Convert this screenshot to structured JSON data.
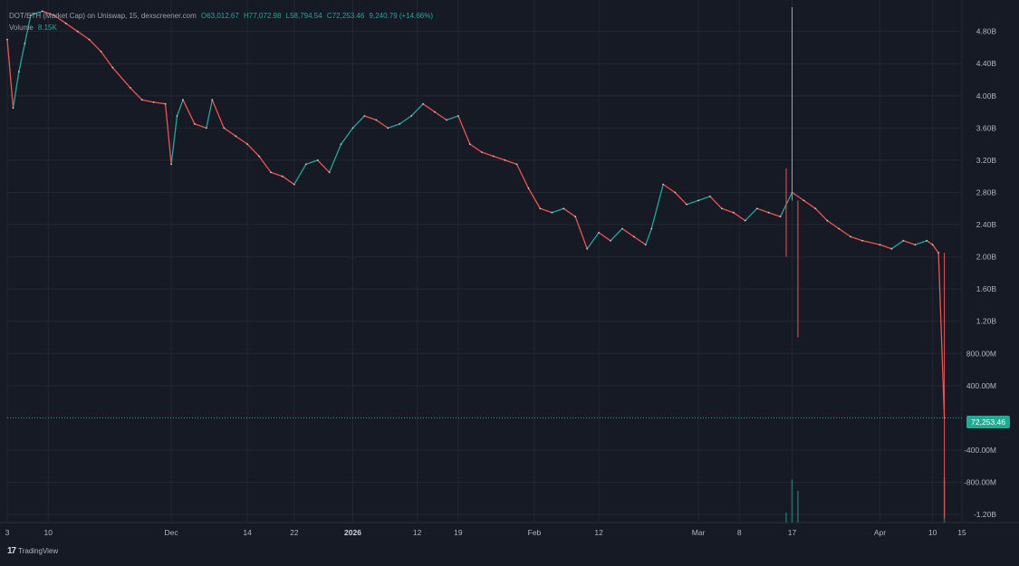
{
  "legend": {
    "symbol": "DOT/ETH (Market Cap) on Uniswap, 15, dexscreener.com",
    "open": "O63,012.67",
    "high": "H77,072.98",
    "low": "L58,794.54",
    "close": "C72,253.46",
    "change": "9,240.79 (+14.66%)",
    "volume_label": "Volume",
    "volume_value": "8.15K"
  },
  "last_price_label": "72,253.46",
  "footer": {
    "brand": "TradingView",
    "icon": "tradingview-logo-icon"
  },
  "colors": {
    "background": "#161a25",
    "up": "#26a69a",
    "down": "#ef5350",
    "grid": "#232733",
    "price_tag": "#22ab94"
  },
  "chart_data": {
    "type": "line",
    "title": "",
    "xlabel": "",
    "ylabel": "",
    "y_unit": "Market Cap",
    "ylim": [
      -1300000000,
      5100000000
    ],
    "x_range": [
      "2025-11-03",
      "2026-04-15"
    ],
    "y_ticks": [
      {
        "v": 4800000000,
        "label": "4.80B"
      },
      {
        "v": 4400000000,
        "label": "4.40B"
      },
      {
        "v": 4000000000,
        "label": "4.00B"
      },
      {
        "v": 3600000000,
        "label": "3.60B"
      },
      {
        "v": 3200000000,
        "label": "3.20B"
      },
      {
        "v": 2800000000,
        "label": "2.80B"
      },
      {
        "v": 2400000000,
        "label": "2.40B"
      },
      {
        "v": 2000000000,
        "label": "2.00B"
      },
      {
        "v": 1600000000,
        "label": "1.60B"
      },
      {
        "v": 1200000000,
        "label": "1.20B"
      },
      {
        "v": 800000000,
        "label": "800.00M"
      },
      {
        "v": 400000000,
        "label": "400.00M"
      },
      {
        "v": -400000000,
        "label": "-400.00M"
      },
      {
        "v": -800000000,
        "label": "-800.00M"
      },
      {
        "v": -1200000000,
        "label": "-1.20B"
      }
    ],
    "x_ticks": [
      {
        "date": "2025-11-03",
        "label": "3"
      },
      {
        "date": "2025-11-10",
        "label": "10"
      },
      {
        "date": "2025-12-01",
        "label": "Dec"
      },
      {
        "date": "2025-12-14",
        "label": "14"
      },
      {
        "date": "2025-12-22",
        "label": "22"
      },
      {
        "date": "2026-01-01",
        "label": "2026"
      },
      {
        "date": "2026-01-12",
        "label": "12"
      },
      {
        "date": "2026-01-19",
        "label": "19"
      },
      {
        "date": "2026-02-01",
        "label": "Feb"
      },
      {
        "date": "2026-02-12",
        "label": "12"
      },
      {
        "date": "2026-03-01",
        "label": "Mar"
      },
      {
        "date": "2026-03-08",
        "label": "8"
      },
      {
        "date": "2026-03-17",
        "label": "17"
      },
      {
        "date": "2026-04-01",
        "label": "Apr"
      },
      {
        "date": "2026-04-10",
        "label": "10"
      },
      {
        "date": "2026-04-15",
        "label": "15"
      }
    ],
    "series": [
      {
        "values": [
          [
            "2025-11-03",
            4700000000
          ],
          [
            "2025-11-04",
            3850000000
          ],
          [
            "2025-11-05",
            4300000000
          ],
          [
            "2025-11-06",
            4650000000
          ],
          [
            "2025-11-07",
            5000000000
          ],
          [
            "2025-11-09",
            5050000000
          ],
          [
            "2025-11-11",
            5000000000
          ],
          [
            "2025-11-13",
            4900000000
          ],
          [
            "2025-11-15",
            4800000000
          ],
          [
            "2025-11-17",
            4700000000
          ],
          [
            "2025-11-19",
            4550000000
          ],
          [
            "2025-11-21",
            4350000000
          ],
          [
            "2025-11-24",
            4100000000
          ],
          [
            "2025-11-26",
            3950000000
          ],
          [
            "2025-11-28",
            3920000000
          ],
          [
            "2025-11-30",
            3900000000
          ],
          [
            "2025-12-01",
            3150000000
          ],
          [
            "2025-12-02",
            3750000000
          ],
          [
            "2025-12-03",
            3950000000
          ],
          [
            "2025-12-05",
            3650000000
          ],
          [
            "2025-12-07",
            3600000000
          ],
          [
            "2025-12-08",
            3950000000
          ],
          [
            "2025-12-10",
            3600000000
          ],
          [
            "2025-12-12",
            3500000000
          ],
          [
            "2025-12-14",
            3400000000
          ],
          [
            "2025-12-16",
            3250000000
          ],
          [
            "2025-12-18",
            3050000000
          ],
          [
            "2025-12-20",
            3000000000
          ],
          [
            "2025-12-22",
            2900000000
          ],
          [
            "2025-12-24",
            3150000000
          ],
          [
            "2025-12-26",
            3200000000
          ],
          [
            "2025-12-28",
            3050000000
          ],
          [
            "2025-12-30",
            3400000000
          ],
          [
            "2026-01-01",
            3600000000
          ],
          [
            "2026-01-03",
            3750000000
          ],
          [
            "2026-01-05",
            3700000000
          ],
          [
            "2026-01-07",
            3600000000
          ],
          [
            "2026-01-09",
            3650000000
          ],
          [
            "2026-01-11",
            3750000000
          ],
          [
            "2026-01-13",
            3900000000
          ],
          [
            "2026-01-15",
            3800000000
          ],
          [
            "2026-01-17",
            3700000000
          ],
          [
            "2026-01-19",
            3750000000
          ],
          [
            "2026-01-21",
            3400000000
          ],
          [
            "2026-01-23",
            3300000000
          ],
          [
            "2026-01-25",
            3250000000
          ],
          [
            "2026-01-27",
            3200000000
          ],
          [
            "2026-01-29",
            3150000000
          ],
          [
            "2026-01-31",
            2850000000
          ],
          [
            "2026-02-02",
            2600000000
          ],
          [
            "2026-02-04",
            2550000000
          ],
          [
            "2026-02-06",
            2600000000
          ],
          [
            "2026-02-08",
            2500000000
          ],
          [
            "2026-02-10",
            2100000000
          ],
          [
            "2026-02-12",
            2300000000
          ],
          [
            "2026-02-14",
            2200000000
          ],
          [
            "2026-02-16",
            2350000000
          ],
          [
            "2026-02-18",
            2250000000
          ],
          [
            "2026-02-20",
            2150000000
          ],
          [
            "2026-02-21",
            2350000000
          ],
          [
            "2026-02-23",
            2900000000
          ],
          [
            "2026-02-25",
            2800000000
          ],
          [
            "2026-02-27",
            2650000000
          ],
          [
            "2026-03-01",
            2700000000
          ],
          [
            "2026-03-03",
            2750000000
          ],
          [
            "2026-03-05",
            2600000000
          ],
          [
            "2026-03-07",
            2550000000
          ],
          [
            "2026-03-09",
            2450000000
          ],
          [
            "2026-03-11",
            2600000000
          ],
          [
            "2026-03-13",
            2550000000
          ],
          [
            "2026-03-15",
            2500000000
          ],
          [
            "2026-03-17",
            2800000000
          ],
          [
            "2026-03-19",
            2700000000
          ],
          [
            "2026-03-21",
            2600000000
          ],
          [
            "2026-03-23",
            2450000000
          ],
          [
            "2026-03-25",
            2350000000
          ],
          [
            "2026-03-27",
            2250000000
          ],
          [
            "2026-03-29",
            2200000000
          ],
          [
            "2026-04-01",
            2150000000
          ],
          [
            "2026-04-03",
            2100000000
          ],
          [
            "2026-04-05",
            2200000000
          ],
          [
            "2026-04-07",
            2150000000
          ],
          [
            "2026-04-09",
            2200000000
          ],
          [
            "2026-04-10",
            2150000000
          ],
          [
            "2026-04-11",
            2050000000
          ],
          [
            "2026-04-12",
            72253
          ]
        ]
      }
    ],
    "wicks": [
      {
        "date": "2026-03-17",
        "high": 5100000000,
        "low": 2700000000
      },
      {
        "date": "2026-03-16",
        "high": 3100000000,
        "low": 2000000000
      },
      {
        "date": "2026-03-18",
        "high": 2700000000,
        "low": 1000000000
      },
      {
        "date": "2026-04-12",
        "high": 2050000000,
        "low": -1250000000
      }
    ],
    "volume": [
      {
        "date": "2026-03-16",
        "value": 0.22
      },
      {
        "date": "2026-03-17",
        "value": 0.95
      },
      {
        "date": "2026-03-18",
        "value": 0.7
      },
      {
        "date": "2026-04-12",
        "value": 1.0
      }
    ],
    "last_price": 72253.46,
    "grid": true
  }
}
